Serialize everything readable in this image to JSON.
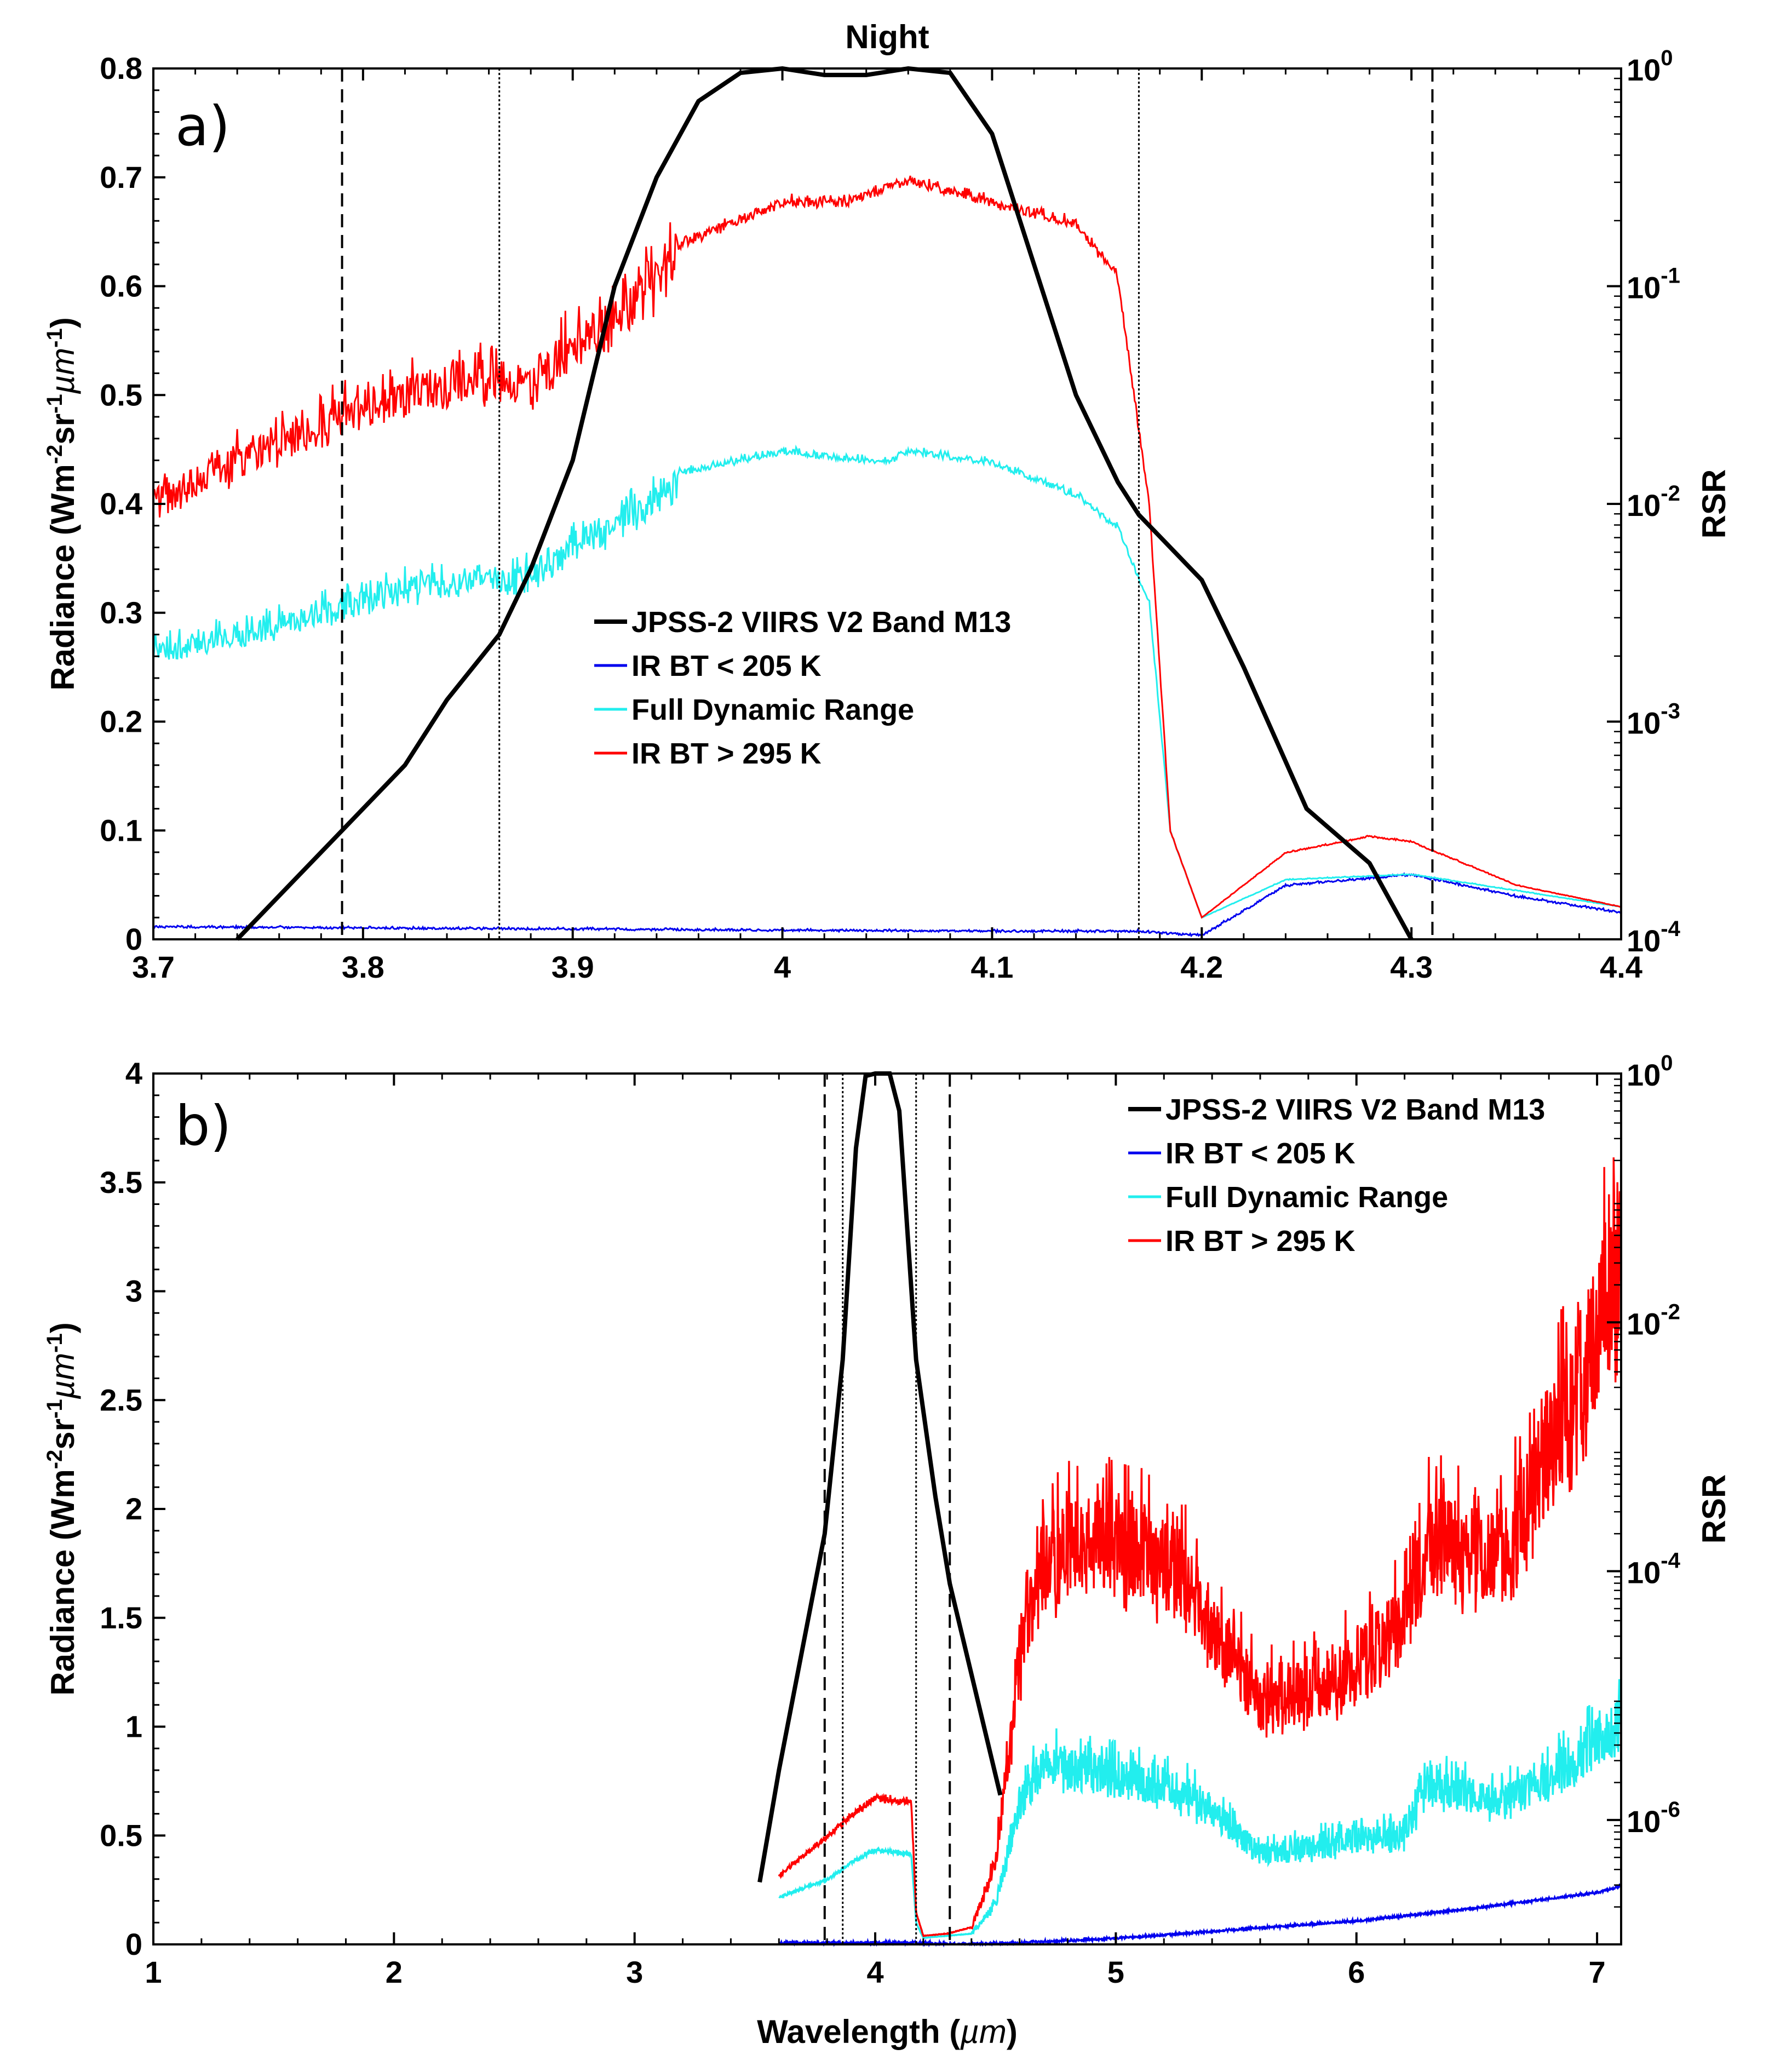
{
  "chart_data": [
    {
      "id": "a",
      "type": "line",
      "title": "Night",
      "panel_label": "a)",
      "xlabel": "",
      "ylabel": "Radiance (Wm-2sr-1µm-1)",
      "ylabel_parts": {
        "base": "Radiance (Wm",
        "e1": "-2",
        "mid": "sr",
        "e2": "-1",
        "mu": "µm",
        "e3": "-1",
        "end": ")"
      },
      "y2label": "RSR",
      "xlim": [
        3.7,
        4.4
      ],
      "ylim": [
        0,
        0.8
      ],
      "y2lim_log10": [
        -4,
        0
      ],
      "xticks": [
        "3.7",
        "3.8",
        "3.9",
        "4",
        "4.1",
        "4.2",
        "4.3",
        "4.4"
      ],
      "xtick_values": [
        3.7,
        3.8,
        3.9,
        4.0,
        4.1,
        4.2,
        4.3,
        4.4
      ],
      "yticks": [
        "0",
        "0.1",
        "0.2",
        "0.3",
        "0.4",
        "0.5",
        "0.6",
        "0.7",
        "0.8"
      ],
      "ytick_values": [
        0,
        0.1,
        0.2,
        0.3,
        0.4,
        0.5,
        0.6,
        0.7,
        0.8
      ],
      "y2ticks": [
        {
          "base": "10",
          "exp": "0",
          "v": 0
        },
        {
          "base": "10",
          "exp": "-1",
          "v": -1
        },
        {
          "base": "10",
          "exp": "-2",
          "v": -2
        },
        {
          "base": "10",
          "exp": "-3",
          "v": -3
        },
        {
          "base": "10",
          "exp": "-4",
          "v": -4
        }
      ],
      "vlines_dashed": [
        3.79,
        4.31
      ],
      "vlines_dotted": [
        3.865,
        4.17
      ],
      "legend": [
        "JPSS-2 VIIRS V2 Band M13",
        "IR BT < 205 K",
        "Full Dynamic Range",
        "IR BT > 295 K"
      ],
      "series": [
        {
          "name": "JPSS-2 VIIRS V2 Band M13",
          "color": "#000000",
          "axis": "right",
          "x": [
            3.74,
            3.76,
            3.79,
            3.82,
            3.84,
            3.865,
            3.88,
            3.9,
            3.92,
            3.94,
            3.96,
            3.98,
            4.0,
            4.02,
            4.04,
            4.06,
            4.08,
            4.1,
            4.12,
            4.14,
            4.16,
            4.17,
            4.2,
            4.22,
            4.25,
            4.28,
            4.3
          ],
          "log10": [
            -4,
            -3.8,
            -3.5,
            -3.2,
            -2.9,
            -2.6,
            -2.3,
            -1.8,
            -1.0,
            -0.5,
            -0.15,
            -0.02,
            0,
            -0.03,
            -0.03,
            0,
            -0.02,
            -0.3,
            -0.9,
            -1.5,
            -1.9,
            -2.05,
            -2.35,
            -2.75,
            -3.4,
            -3.65,
            -4
          ]
        },
        {
          "name": "IR BT < 205 K",
          "color": "#0000ee",
          "anchors_x": [
            3.7,
            3.9,
            4.1,
            4.17,
            4.2,
            4.24,
            4.3,
            4.35,
            4.4
          ],
          "anchors_y": [
            0.012,
            0.01,
            0.008,
            0.008,
            0.004,
            0.05,
            0.06,
            0.04,
            0.025
          ]
        },
        {
          "name": "Full Dynamic Range",
          "color": "#22eeee",
          "anchors_x": [
            3.7,
            3.75,
            3.8,
            3.85,
            3.88,
            3.9,
            3.93,
            3.95,
            4.0,
            4.05,
            4.06,
            4.1,
            4.14,
            4.16,
            4.175,
            4.185,
            4.2,
            4.24,
            4.3,
            4.35,
            4.4
          ],
          "anchors_y": [
            0.27,
            0.29,
            0.32,
            0.34,
            0.34,
            0.37,
            0.4,
            0.43,
            0.45,
            0.44,
            0.45,
            0.44,
            0.41,
            0.38,
            0.31,
            0.1,
            0.02,
            0.055,
            0.06,
            0.045,
            0.03
          ]
        },
        {
          "name": "IR BT > 295 K",
          "color": "#ff0000",
          "anchors_x": [
            3.7,
            3.75,
            3.8,
            3.85,
            3.88,
            3.9,
            3.92,
            3.95,
            4.0,
            4.03,
            4.06,
            4.1,
            4.14,
            4.16,
            4.175,
            4.185,
            4.2,
            4.24,
            4.28,
            4.3,
            4.35,
            4.4
          ],
          "anchors_y": [
            0.41,
            0.46,
            0.5,
            0.53,
            0.52,
            0.56,
            0.58,
            0.64,
            0.68,
            0.68,
            0.7,
            0.68,
            0.66,
            0.61,
            0.4,
            0.1,
            0.02,
            0.08,
            0.095,
            0.09,
            0.05,
            0.03
          ]
        }
      ]
    },
    {
      "id": "b",
      "type": "line",
      "title": "",
      "panel_label": "b)",
      "xlabel": "Wavelength (µm)",
      "xlabel_parts": {
        "base": "Wavelength (",
        "mu": "µm",
        "end": ")"
      },
      "ylabel": "Radiance (Wm-2sr-1µm-1)",
      "ylabel_parts": {
        "base": "Radiance (Wm",
        "e1": "-2",
        "mid": "sr",
        "e2": "-1",
        "mu": "µm",
        "e3": "-1",
        "end": ")"
      },
      "y2label": "RSR",
      "xlim": [
        1,
        7.1
      ],
      "ylim": [
        0,
        4
      ],
      "y2lim_log10": [
        -7,
        0
      ],
      "xticks": [
        "1",
        "2",
        "3",
        "4",
        "5",
        "6",
        "7"
      ],
      "xtick_values": [
        1,
        2,
        3,
        4,
        5,
        6,
        7
      ],
      "yticks": [
        "0",
        "0.5",
        "1",
        "1.5",
        "2",
        "2.5",
        "3",
        "3.5",
        "4"
      ],
      "ytick_values": [
        0,
        0.5,
        1,
        1.5,
        2,
        2.5,
        3,
        3.5,
        4
      ],
      "y2ticks": [
        {
          "base": "10",
          "exp": "0",
          "v": 0
        },
        {
          "base": "10",
          "exp": "-2",
          "v": -2
        },
        {
          "base": "10",
          "exp": "-4",
          "v": -4
        },
        {
          "base": "10",
          "exp": "-6",
          "v": -6
        }
      ],
      "vlines_dashed": [
        3.79,
        4.31
      ],
      "vlines_dotted": [
        3.865,
        4.17
      ],
      "legend": [
        "JPSS-2 VIIRS V2 Band M13",
        "IR BT < 205 K",
        "Full Dynamic Range",
        "IR BT > 295 K"
      ],
      "series": [
        {
          "name": "JPSS-2 VIIRS V2 Band M13",
          "color": "#000000",
          "axis": "right",
          "x": [
            3.52,
            3.6,
            3.7,
            3.79,
            3.865,
            3.92,
            3.96,
            4.0,
            4.06,
            4.1,
            4.17,
            4.25,
            4.31,
            4.52
          ],
          "log10": [
            -6.5,
            -5.6,
            -4.6,
            -3.7,
            -2.3,
            -0.6,
            -0.02,
            0,
            0,
            -0.3,
            -2.3,
            -3.4,
            -4.1,
            -5.8
          ]
        },
        {
          "name": "IR BT < 205 K",
          "color": "#0000ee",
          "anchors_x": [
            3.6,
            4.17,
            4.3,
            4.6,
            5.0,
            5.5,
            6.0,
            6.5,
            7.0,
            7.1
          ],
          "anchors_y": [
            0.01,
            0.01,
            0.003,
            0.01,
            0.03,
            0.07,
            0.11,
            0.17,
            0.24,
            0.27
          ]
        },
        {
          "name": "Full Dynamic Range",
          "color": "#22eeee",
          "anchors_x": [
            3.6,
            3.8,
            3.9,
            4.0,
            4.15,
            4.17,
            4.2,
            4.3,
            4.4,
            4.5,
            4.6,
            4.7,
            4.9,
            5.1,
            5.3,
            5.6,
            5.9,
            6.2,
            6.3,
            6.6,
            6.9,
            7.1
          ],
          "anchors_y": [
            0.22,
            0.3,
            0.38,
            0.44,
            0.42,
            0.1,
            0.03,
            0.04,
            0.05,
            0.2,
            0.7,
            0.9,
            0.85,
            0.8,
            0.75,
            0.45,
            0.5,
            0.55,
            0.8,
            0.7,
            0.9,
            1.1
          ]
        },
        {
          "name": "IR BT > 295 K",
          "color": "#ff0000",
          "anchors_x": [
            3.6,
            3.8,
            3.9,
            4.0,
            4.15,
            4.17,
            4.2,
            4.3,
            4.4,
            4.5,
            4.6,
            4.7,
            4.9,
            5.1,
            5.3,
            5.6,
            5.9,
            6.2,
            6.3,
            6.6,
            6.9,
            7.1
          ],
          "anchors_y": [
            0.32,
            0.5,
            0.6,
            0.68,
            0.66,
            0.15,
            0.04,
            0.05,
            0.08,
            0.4,
            1.4,
            1.9,
            2.0,
            1.95,
            1.8,
            1.2,
            1.3,
            1.6,
            2.0,
            1.9,
            2.7,
            3.4
          ]
        }
      ]
    }
  ]
}
